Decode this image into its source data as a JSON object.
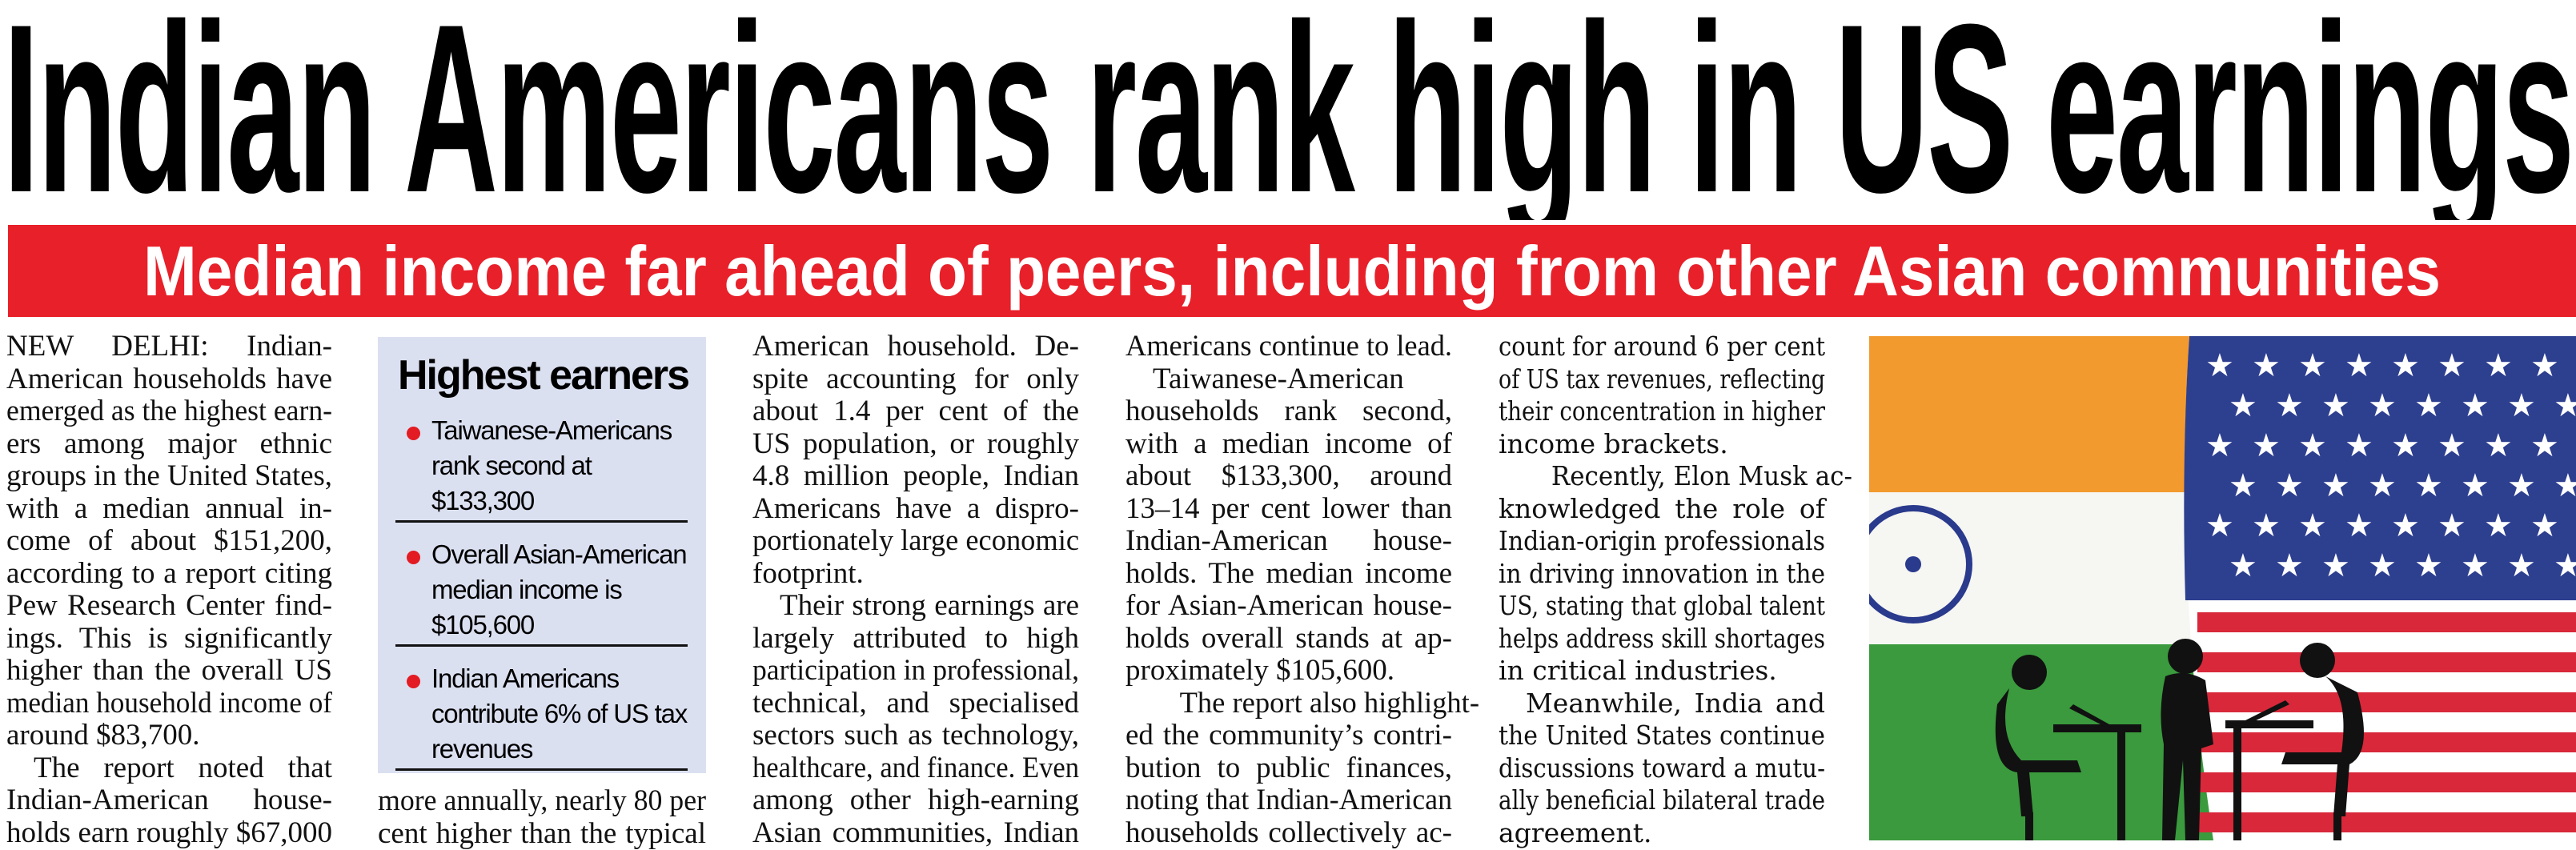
{
  "headline": "Indian Americans rank high in US earnings",
  "subheadline": "Median income far ahead of peers, including from other Asian communities",
  "colors": {
    "accent_red": "#e8202a",
    "sidebar_bg": "#dbe0f1"
  },
  "sidebar": {
    "title": "Highest earners",
    "items": [
      {
        "label": "Taiwanese-Americans rank second at $133,300"
      },
      {
        "label": "Overall Asian-American median income is $105,600"
      },
      {
        "label": "Indian Americans contribute 6% of US tax revenues"
      }
    ]
  },
  "columns": [
    [
      {
        "indent": false,
        "lines": [
          "NEW DELHI: Indian-",
          "American households have",
          "emerged as the highest earn-",
          "ers among major ethnic",
          "groups in the United States,",
          "with a median annual in-",
          "come of about $151,200,",
          "according to a report citing",
          "Pew Research Center find-",
          "ings. This is significantly",
          "higher than the overall US",
          "median household income of",
          "around $83,700."
        ]
      },
      {
        "indent": true,
        "lines": [
          "The report noted that",
          "Indian-American house-",
          "holds earn roughly $67,000"
        ],
        "continues": true
      }
    ],
    [
      {
        "indent": false,
        "lines": [
          "more annually, nearly 80 per",
          "cent higher than the typical"
        ],
        "continues": true
      }
    ],
    [
      {
        "indent": false,
        "lines": [
          "American household. De-",
          "spite accounting for only",
          "about 1.4 per cent of the",
          "US population, or roughly",
          "4.8 million people, Indian",
          "Americans have a dispro-",
          "portionately large economic",
          "footprint."
        ]
      },
      {
        "indent": true,
        "lines": [
          "Their strong earnings are",
          "largely attributed to high",
          "participation in professional,",
          "technical, and specialised",
          "sectors such as technology,",
          "healthcare, and finance. Even",
          "among other high-earning",
          "Asian communities, Indian"
        ],
        "continues": true
      }
    ],
    [
      {
        "indent": false,
        "lines": [
          "Americans continue to lead."
        ]
      },
      {
        "indent": true,
        "lines": [
          "Taiwanese-American",
          "households rank second,",
          "with a median income of",
          "about $133,300, around",
          "13–14 per cent lower than",
          "Indian-American house-",
          "holds. The median income",
          "for Asian-American house-",
          "holds overall stands at ap-",
          "proximately $105,600."
        ]
      },
      {
        "indent": true,
        "lines": [
          "The report also highlight-",
          "ed the community’s contri-",
          "bution to public finances,",
          "noting that Indian-American",
          "households collectively ac-"
        ],
        "continues": true
      }
    ],
    [
      {
        "indent": false,
        "lines": [
          "count for around 6 per cent",
          "of US tax revenues, reflecting",
          "their concentration in higher",
          "income brackets."
        ]
      },
      {
        "indent": true,
        "lines": [
          "Recently, Elon Musk ac-",
          "knowledged the role of",
          "Indian-origin professionals",
          "in driving innovation in the",
          "US, stating that global talent",
          "helps address skill shortages",
          "in critical industries."
        ]
      },
      {
        "indent": true,
        "lines": [
          "Meanwhile, India and",
          "the United States continue",
          "discussions toward a mutu-",
          "ally beneficial bilateral trade",
          "agreement."
        ]
      }
    ]
  ],
  "photo": {
    "subject": "india-us-flags-silhouettes"
  }
}
